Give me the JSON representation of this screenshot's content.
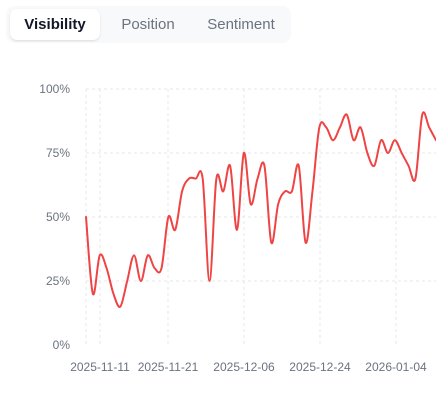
{
  "tabs": [
    {
      "label": "Visibility",
      "active": true
    },
    {
      "label": "Position",
      "active": false
    },
    {
      "label": "Sentiment",
      "active": false
    }
  ],
  "colors": {
    "line": "#ef4444",
    "grid": "#e5e7eb",
    "tick": "#6b7280"
  },
  "chart_data": {
    "type": "line",
    "title": "",
    "xlabel": "",
    "ylabel": "",
    "ylim": [
      0,
      100
    ],
    "yticks": [
      "0%",
      "25%",
      "50%",
      "75%",
      "100%"
    ],
    "yunit": "%",
    "x_tick_labels": [
      "2025-11-11",
      "2025-11-21",
      "2025-12-06",
      "2025-12-24",
      "2026-01-04"
    ],
    "grid": true,
    "series": [
      {
        "values": [
          50,
          20,
          35,
          30,
          20,
          15,
          25,
          35,
          25,
          35,
          30,
          30,
          50,
          45,
          60,
          65,
          65,
          65,
          25,
          65,
          60,
          70,
          45,
          75,
          55,
          65,
          70,
          40,
          55,
          60,
          60,
          70,
          40,
          60,
          85,
          85,
          80,
          85,
          90,
          80,
          85,
          75,
          70,
          80,
          75,
          80,
          75,
          70,
          65,
          90,
          85,
          80
        ]
      }
    ]
  }
}
